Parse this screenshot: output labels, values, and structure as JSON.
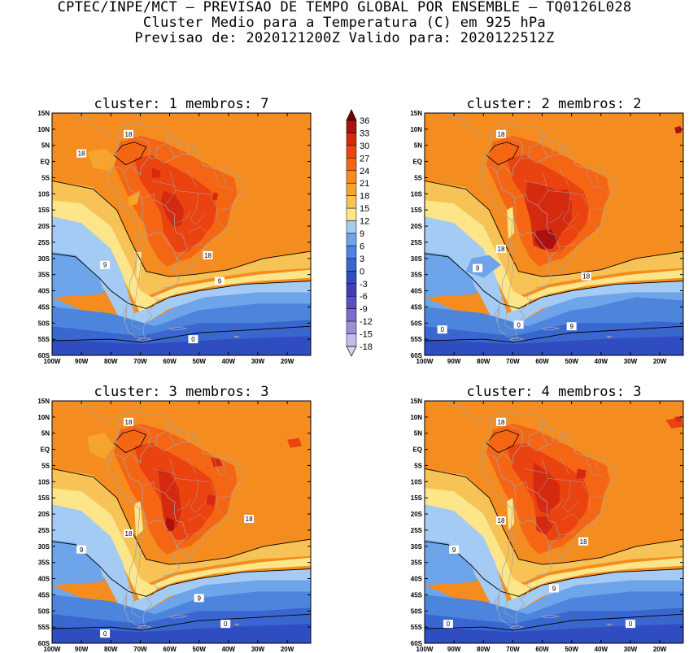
{
  "header": {
    "line1": "CPTEC/INPE/MCT – PREVISAO DE TEMPO GLOBAL POR ENSEMBLE – TQ0126L028",
    "line2": "Cluster Medio para a Temperatura (C) em 925 hPa",
    "line3": "Previsao de: 2020121200Z   Valido para: 2020122512Z"
  },
  "colors": {
    "background": "#ffffff",
    "land_outline": "#a6a6a6"
  },
  "chart_data": {
    "type": "contour-map",
    "variable": "Temperatura (C) em 925 hPa",
    "axes": {
      "lon_range": [
        -100,
        -12
      ],
      "lat_range": [
        -60,
        15
      ],
      "lon_ticks": [
        "100W",
        "90W",
        "80W",
        "70W",
        "60W",
        "50W",
        "40W",
        "30W",
        "20W"
      ],
      "lat_ticks": [
        "15N",
        "10N",
        "5N",
        "EQ",
        "5S",
        "10S",
        "15S",
        "20S",
        "25S",
        "30S",
        "35S",
        "40S",
        "45S",
        "50S",
        "55S",
        "60S"
      ]
    },
    "colorbar": {
      "levels": [
        "36",
        "33",
        "30",
        "27",
        "24",
        "21",
        "18",
        "15",
        "12",
        "9",
        "6",
        "3",
        "0",
        "-3",
        "-6",
        "-9",
        "-12",
        "-15",
        "-18"
      ],
      "colors": [
        "#7a0000",
        "#ad1010",
        "#d52a10",
        "#eb4310",
        "#f46614",
        "#f58c1f",
        "#f6a52c",
        "#f7c356",
        "#fde68a",
        "#a4cbf3",
        "#6ea4ea",
        "#4d85dd",
        "#3a66cf",
        "#2f4cc1",
        "#3f3fb5",
        "#5a4ec0",
        "#7a6bcf",
        "#9b8ddc",
        "#c6bde9"
      ]
    },
    "panels": [
      {
        "cluster": "1",
        "membros": "7",
        "title": "cluster: 1   membros: 7",
        "contour_labels": [
          "18",
          "18",
          "18",
          "9",
          "9",
          "0"
        ]
      },
      {
        "cluster": "2",
        "membros": "2",
        "title": "cluster: 2   membros: 2",
        "contour_labels": [
          "18",
          "18",
          "18",
          "9",
          "9",
          "0",
          "0"
        ]
      },
      {
        "cluster": "3",
        "membros": "3",
        "title": "cluster: 3   membros: 3",
        "contour_labels": [
          "18",
          "18",
          "18",
          "9",
          "9",
          "0",
          "0"
        ]
      },
      {
        "cluster": "4",
        "membros": "3",
        "title": "cluster: 4   membros: 3",
        "contour_labels": [
          "18",
          "18",
          "18",
          "9",
          "9",
          "0",
          "0"
        ]
      }
    ]
  }
}
